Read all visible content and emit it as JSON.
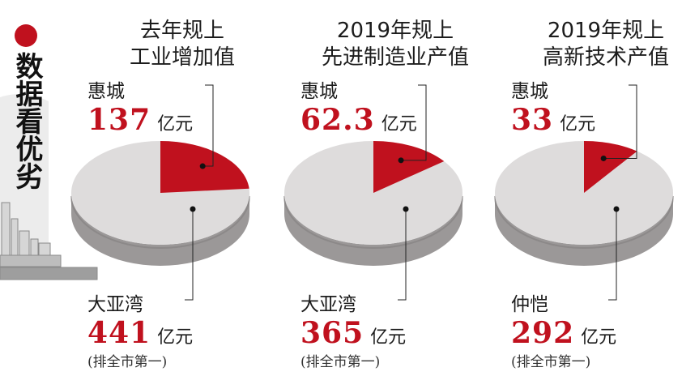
{
  "side_title": "数据看优劣",
  "colors": {
    "accent": "#c0111e",
    "pie_light": "#dedcdc",
    "pie_side": "#9b9898"
  },
  "chart_data": [
    {
      "type": "pie",
      "title_lines": [
        "去年规上",
        "工业增加值"
      ],
      "unit": "亿元",
      "slices": [
        {
          "label": "惠城",
          "value": 137,
          "value_text": "137",
          "color": "#c0111e"
        },
        {
          "label": "大亚湾",
          "value": 441,
          "value_text": "441",
          "note": "(排全市第一)",
          "color": "#dedcdc"
        }
      ]
    },
    {
      "type": "pie",
      "title_lines": [
        "2019年规上",
        "先进制造业产值"
      ],
      "unit": "亿元",
      "slices": [
        {
          "label": "惠城",
          "value": 62.3,
          "value_text": "62.3",
          "color": "#c0111e"
        },
        {
          "label": "大亚湾",
          "value": 365,
          "value_text": "365",
          "note": "(排全市第一)",
          "color": "#dedcdc"
        }
      ]
    },
    {
      "type": "pie",
      "title_lines": [
        "2019年规上",
        "高新技术产值"
      ],
      "unit": "亿元",
      "slices": [
        {
          "label": "惠城",
          "value": 33,
          "value_text": "33",
          "color": "#c0111e"
        },
        {
          "label": "仲恺",
          "value": 292,
          "value_text": "292",
          "note": "(排全市第一)",
          "color": "#dedcdc"
        }
      ]
    }
  ]
}
